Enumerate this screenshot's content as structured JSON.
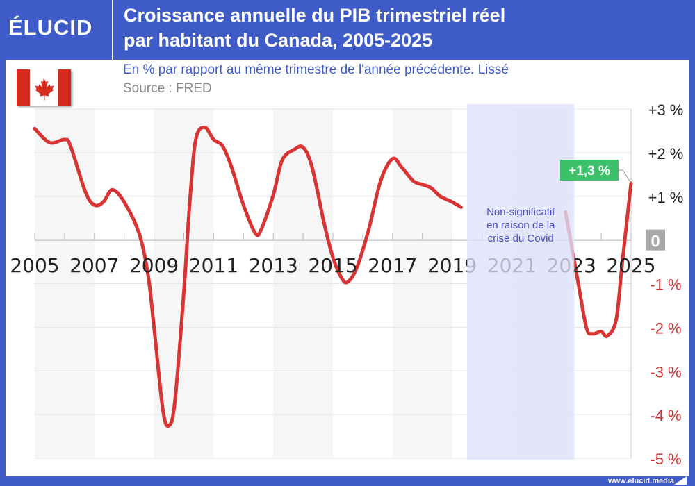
{
  "brand": {
    "logo": "ÉLUCID",
    "footer": "www.elucid.media"
  },
  "header": {
    "title_line1": "Croissance annuelle du PIB trimestriel réel",
    "title_line2": "par habitant du Canada, 2005-2025"
  },
  "subtitle": "En % par rapport au même trimestre de l'année précédente. Lissé",
  "source": "Source : FRED",
  "flag": "canada-flag",
  "colors": {
    "brand_blue": "#3f5bc8",
    "line": "#d93434",
    "label_green": "#3cc06a",
    "covid_band": "#e4e6fa",
    "negative_label": "#d32f2f"
  },
  "chart_data": {
    "type": "line",
    "xlim": [
      2005,
      2025
    ],
    "ylim": [
      -5,
      3
    ],
    "x_tick_labels": [
      "2005",
      "2007",
      "2009",
      "2011",
      "2013",
      "2015",
      "2017",
      "2019",
      "2021",
      "2023",
      "2025"
    ],
    "y_tick_labels": [
      "+3 %",
      "+2 %",
      "+1 %",
      "0",
      "-1 %",
      "-2 %",
      "-3 %",
      "-4 %",
      "-5 %"
    ],
    "y_ticks": [
      3,
      2,
      1,
      0,
      -1,
      -2,
      -3,
      -4,
      -5
    ],
    "grid": true,
    "series": [
      {
        "segment": "pre-covid",
        "points": [
          [
            2005.0,
            2.55
          ],
          [
            2005.5,
            2.23
          ],
          [
            2006.0,
            2.3
          ],
          [
            2006.2,
            2.15
          ],
          [
            2006.7,
            1.1
          ],
          [
            2007.0,
            0.8
          ],
          [
            2007.3,
            0.87
          ],
          [
            2007.6,
            1.15
          ],
          [
            2008.0,
            0.87
          ],
          [
            2008.5,
            0.15
          ],
          [
            2008.8,
            -0.8
          ],
          [
            2009.0,
            -2.0
          ],
          [
            2009.3,
            -3.9
          ],
          [
            2009.5,
            -4.25
          ],
          [
            2009.7,
            -3.7
          ],
          [
            2010.0,
            -1.2
          ],
          [
            2010.2,
            0.87
          ],
          [
            2010.4,
            2.3
          ],
          [
            2010.7,
            2.58
          ],
          [
            2011.0,
            2.3
          ],
          [
            2011.3,
            2.15
          ],
          [
            2011.6,
            1.67
          ],
          [
            2012.0,
            0.8
          ],
          [
            2012.4,
            0.15
          ],
          [
            2012.6,
            0.25
          ],
          [
            2013.0,
            1.03
          ],
          [
            2013.3,
            1.83
          ],
          [
            2013.7,
            2.07
          ],
          [
            2014.0,
            2.12
          ],
          [
            2014.3,
            1.67
          ],
          [
            2014.7,
            0.4
          ],
          [
            2015.0,
            -0.4
          ],
          [
            2015.3,
            -0.88
          ],
          [
            2015.5,
            -0.96
          ],
          [
            2015.8,
            -0.64
          ],
          [
            2016.2,
            0.24
          ],
          [
            2016.6,
            1.35
          ],
          [
            2017.0,
            1.86
          ],
          [
            2017.3,
            1.67
          ],
          [
            2017.7,
            1.35
          ],
          [
            2018.0,
            1.27
          ],
          [
            2018.3,
            1.19
          ],
          [
            2018.6,
            1.0
          ],
          [
            2019.0,
            0.87
          ],
          [
            2019.3,
            0.75
          ]
        ]
      },
      {
        "segment": "post-covid",
        "points": [
          [
            2022.8,
            0.64
          ],
          [
            2023.2,
            -0.88
          ],
          [
            2023.5,
            -2.0
          ],
          [
            2023.7,
            -2.15
          ],
          [
            2024.0,
            -2.1
          ],
          [
            2024.2,
            -2.2
          ],
          [
            2024.5,
            -1.83
          ],
          [
            2024.7,
            -0.56
          ],
          [
            2025.0,
            1.3
          ]
        ]
      }
    ],
    "covid_band": {
      "from": 2019.5,
      "to": 2023.1,
      "annotation": [
        "Non-significatif",
        "en raison de la",
        "crise du Covid"
      ]
    },
    "last_value_label": "+1,3 %",
    "last_value": 1.3
  }
}
